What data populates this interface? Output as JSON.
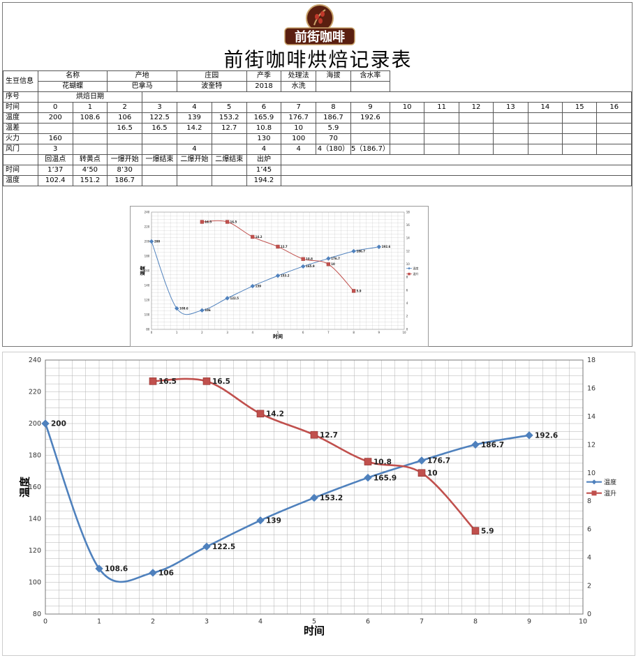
{
  "logo_text": "前街咖啡",
  "title": "前街咖啡烘焙记录表",
  "info": {
    "row_label": "生豆信息",
    "headers": [
      "名称",
      "产地",
      "庄园",
      "产季",
      "处理法",
      "海拔",
      "含水率"
    ],
    "values": [
      "花蝴蝶",
      "巴拿马",
      "波奎特",
      "2018",
      "水洗",
      "",
      ""
    ]
  },
  "seq": {
    "label": "序号",
    "date_label": "烘焙日期"
  },
  "time_row": {
    "label": "时间",
    "values": [
      "0",
      "1",
      "2",
      "3",
      "4",
      "5",
      "6",
      "7",
      "8",
      "9",
      "10",
      "11",
      "12",
      "13",
      "14",
      "15",
      "16"
    ]
  },
  "temp_row": {
    "label": "温度",
    "values": [
      "200",
      "108.6",
      "106",
      "122.5",
      "139",
      "153.2",
      "165.9",
      "176.7",
      "186.7",
      "192.6",
      "",
      "",
      "",
      "",
      "",
      "",
      ""
    ]
  },
  "rise_row": {
    "label": "温差",
    "values": [
      "",
      "",
      "16.5",
      "16.5",
      "14.2",
      "12.7",
      "10.8",
      "10",
      "5.9",
      "",
      "",
      "",
      "",
      "",
      "",
      "",
      ""
    ]
  },
  "fire_row": {
    "label": "火力",
    "values": [
      "160",
      "",
      "",
      "",
      "",
      "",
      "130",
      "100",
      "70",
      "",
      "",
      "",
      "",
      "",
      "",
      "",
      ""
    ]
  },
  "damper_row": {
    "label": "风门",
    "values": [
      "3",
      "",
      "",
      "",
      "4",
      "",
      "4",
      "4",
      "4（180）",
      "5（186.7）",
      "",
      "",
      "",
      "",
      "",
      "",
      ""
    ]
  },
  "events": {
    "headers": [
      "回温点",
      "转黄点",
      "一爆开始",
      "一爆结束",
      "二爆开始",
      "二爆结束",
      "出炉"
    ],
    "time_label": "时间",
    "times": [
      "1’37",
      "4’50",
      "8’30",
      "",
      "",
      "",
      "1’45"
    ],
    "temp_label": "温度",
    "temps": [
      "102.4",
      "151.2",
      "186.7",
      "",
      "",
      "",
      "194.2"
    ]
  },
  "colors": {
    "temp_series": "#4f81bd",
    "rise_series": "#c0504d",
    "grid": "#888888"
  },
  "chart_data": {
    "type": "line",
    "xlabel": "时间",
    "ylabel": "温度",
    "x": [
      0,
      1,
      2,
      3,
      4,
      5,
      6,
      7,
      8,
      9
    ],
    "xlim": [
      0,
      10
    ],
    "ylim": [
      80,
      240
    ],
    "y2lim": [
      0,
      18
    ],
    "yticks": [
      80,
      100,
      120,
      140,
      160,
      180,
      200,
      220,
      240
    ],
    "y2ticks": [
      0,
      2,
      4,
      6,
      8,
      10,
      12,
      14,
      16,
      18
    ],
    "xticks": [
      0,
      1,
      2,
      3,
      4,
      5,
      6,
      7,
      8,
      9,
      10
    ],
    "series": [
      {
        "name": "温度",
        "axis": "left",
        "x": [
          0,
          1,
          2,
          3,
          4,
          5,
          6,
          7,
          8,
          9
        ],
        "values": [
          200,
          108.6,
          106,
          122.5,
          139,
          153.2,
          165.9,
          176.7,
          186.7,
          192.6
        ],
        "labels": [
          "200",
          "108.6",
          "106",
          "122.5",
          "139",
          "153.2",
          "165.9",
          "176.7",
          "186.7",
          "192.6"
        ]
      },
      {
        "name": "温升",
        "axis": "right",
        "x": [
          2,
          3,
          4,
          5,
          6,
          7,
          8
        ],
        "values": [
          16.5,
          16.5,
          14.2,
          12.7,
          10.8,
          10,
          5.9
        ],
        "labels": [
          "16.5",
          "16.5",
          "14.2",
          "12.7",
          "10.8",
          "10",
          "5.9"
        ]
      }
    ],
    "legend": "right",
    "grid": true
  }
}
